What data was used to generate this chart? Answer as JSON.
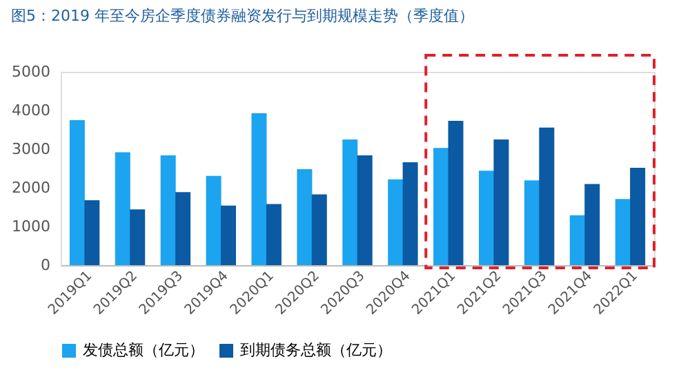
{
  "chart_data": {
    "type": "bar",
    "title": "图5：2019 年至今房企季度债券融资发行与到期规模走势（季度值）",
    "categories": [
      "2019Q1",
      "2019Q2",
      "2019Q3",
      "2019Q4",
      "2020Q1",
      "2020Q2",
      "2020Q3",
      "2020Q4",
      "2021Q1",
      "2021Q2",
      "2021Q3",
      "2021Q4",
      "2022Q1"
    ],
    "series": [
      {
        "name": "发债总额（亿元）",
        "color": "#1ca4f0",
        "values": [
          3750,
          2920,
          2840,
          2310,
          3930,
          2480,
          3250,
          2220,
          3030,
          2440,
          2190,
          1290,
          1710
        ]
      },
      {
        "name": "到期债务总额（亿元）",
        "color": "#0b5aa3",
        "values": [
          1680,
          1440,
          1890,
          1540,
          1580,
          1830,
          2840,
          2660,
          3730,
          3250,
          3560,
          2100,
          2520
        ]
      }
    ],
    "ylim": [
      0,
      5000
    ],
    "yticks": [
      0,
      1000,
      2000,
      3000,
      4000,
      5000
    ],
    "grid": false,
    "legend": "bottom"
  }
}
